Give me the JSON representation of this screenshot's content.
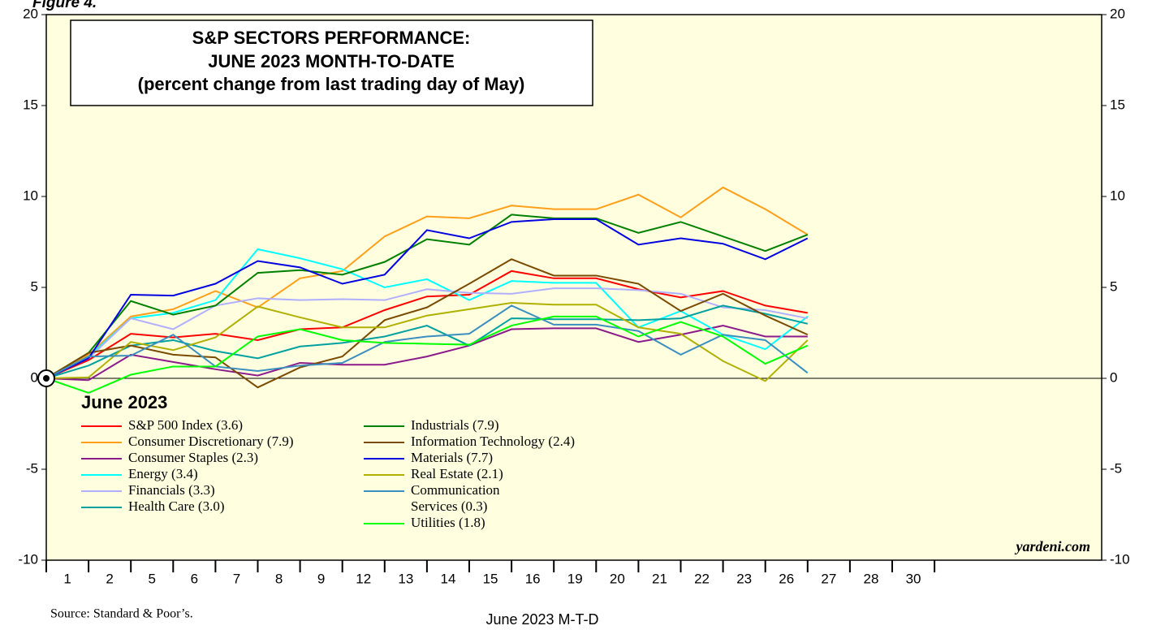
{
  "figure_label": "Figure 4.",
  "chart_data": {
    "type": "line",
    "title": [
      "S&P SECTORS PERFORMANCE:",
      "JUNE 2023 MONTH-TO-DATE",
      "(percent change from last trading day of May)"
    ],
    "legend_title": "June 2023",
    "x_label": "June 2023 M-T-D",
    "source": "Source: Standard & Poor’s.",
    "watermark": "yardeni.com",
    "categories": [
      "1",
      "2",
      "5",
      "6",
      "7",
      "8",
      "9",
      "12",
      "13",
      "14",
      "15",
      "16",
      "19",
      "20",
      "21",
      "22",
      "23",
      "26",
      "27",
      "28",
      "30"
    ],
    "ylim": [
      -10,
      20
    ],
    "yticks": [
      -10,
      -5,
      0,
      5,
      10,
      15,
      20
    ],
    "series": [
      {
        "name": "S&P 500 Index (3.6)",
        "color": "#ff0000",
        "values": [
          1.0,
          2.45,
          2.25,
          2.45,
          2.1,
          2.7,
          2.8,
          3.75,
          4.5,
          4.6,
          5.9,
          5.5,
          5.5,
          4.9,
          4.45,
          4.8,
          4.0,
          3.6,
          null,
          null,
          null
        ]
      },
      {
        "name": "Consumer Discretionary (7.9)",
        "color": "#ff9f1a",
        "values": [
          1.3,
          3.4,
          3.8,
          4.8,
          3.9,
          5.5,
          5.9,
          7.8,
          8.9,
          8.8,
          9.5,
          9.3,
          9.3,
          10.1,
          8.85,
          10.5,
          9.3,
          7.9,
          null,
          null,
          null
        ]
      },
      {
        "name": "Consumer Staples (2.3)",
        "color": "#8b1a8b",
        "values": [
          -0.1,
          1.3,
          0.9,
          0.5,
          0.15,
          0.85,
          0.75,
          0.75,
          1.2,
          1.8,
          2.7,
          2.75,
          2.75,
          2.0,
          2.4,
          2.9,
          2.3,
          2.3,
          null,
          null,
          null
        ]
      },
      {
        "name": "Energy (3.4)",
        "color": "#00ffff",
        "values": [
          1.2,
          3.3,
          3.6,
          4.3,
          7.1,
          6.6,
          6.0,
          5.0,
          5.45,
          4.3,
          5.35,
          5.25,
          5.25,
          2.8,
          3.7,
          2.4,
          1.6,
          3.4,
          null,
          null,
          null
        ]
      },
      {
        "name": "Financials (3.3)",
        "color": "#b0b0ff",
        "values": [
          1.1,
          3.3,
          2.7,
          4.0,
          4.4,
          4.3,
          4.35,
          4.3,
          4.9,
          4.7,
          4.65,
          4.95,
          4.95,
          4.85,
          4.65,
          3.9,
          3.75,
          3.3,
          null,
          null,
          null
        ]
      },
      {
        "name": "Health Care (3.0)",
        "color": "#00a0a0",
        "values": [
          0.7,
          1.8,
          2.1,
          1.5,
          1.1,
          1.75,
          1.95,
          2.3,
          2.9,
          1.8,
          3.3,
          3.25,
          3.25,
          3.2,
          3.3,
          4.0,
          3.55,
          3.0,
          null,
          null,
          null
        ]
      },
      {
        "name": "Industrials (7.9)",
        "color": "#008000",
        "values": [
          1.4,
          4.25,
          3.5,
          4.0,
          5.8,
          5.95,
          5.7,
          6.4,
          7.65,
          7.35,
          9.0,
          8.8,
          8.8,
          8.0,
          8.6,
          7.8,
          7.0,
          7.9,
          null,
          null,
          null
        ]
      },
      {
        "name": "Information Technology (2.4)",
        "color": "#7a4a00",
        "values": [
          1.4,
          1.8,
          1.3,
          1.15,
          -0.5,
          0.6,
          1.2,
          3.2,
          3.9,
          5.2,
          6.55,
          5.65,
          5.65,
          5.2,
          3.7,
          4.65,
          3.45,
          2.4,
          null,
          null,
          null
        ]
      },
      {
        "name": "Materials (7.7)",
        "color": "#0000e0",
        "values": [
          1.1,
          4.6,
          4.55,
          5.2,
          6.45,
          6.1,
          5.2,
          5.7,
          8.15,
          7.7,
          8.6,
          8.75,
          8.75,
          7.35,
          7.7,
          7.4,
          6.55,
          7.7,
          null,
          null,
          null
        ]
      },
      {
        "name": "Real Estate (2.1)",
        "color": "#b0b000",
        "values": [
          0.05,
          2.0,
          1.55,
          2.25,
          3.95,
          3.35,
          2.8,
          2.8,
          3.45,
          3.8,
          4.15,
          4.05,
          4.05,
          2.8,
          2.45,
          0.95,
          -0.15,
          2.1,
          null,
          null,
          null
        ]
      },
      {
        "name": "Communication\nServices (0.3)",
        "color": "#3a8fc0",
        "values": [
          1.2,
          1.25,
          2.4,
          0.65,
          0.4,
          0.7,
          0.85,
          2.0,
          2.3,
          2.45,
          4.0,
          2.95,
          2.95,
          2.6,
          1.3,
          2.4,
          2.1,
          0.3,
          null,
          null,
          null
        ]
      },
      {
        "name": "Utilities (1.8)",
        "color": "#00ff00",
        "values": [
          -0.8,
          0.2,
          0.65,
          0.65,
          2.3,
          2.7,
          2.1,
          1.95,
          1.9,
          1.85,
          2.9,
          3.4,
          3.4,
          2.3,
          3.1,
          2.3,
          0.8,
          1.8,
          null,
          null,
          null
        ]
      }
    ]
  }
}
